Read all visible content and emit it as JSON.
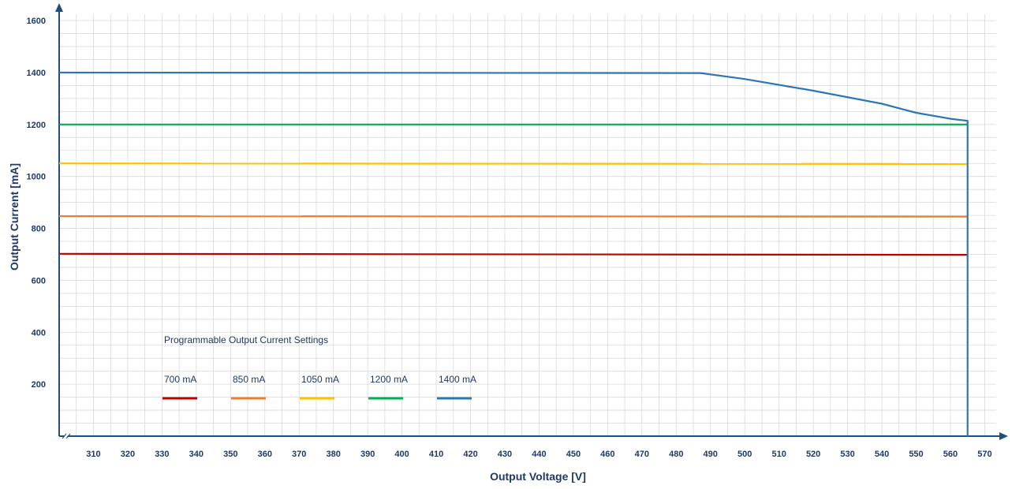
{
  "colors": {
    "axis": "#1F4E79",
    "grid": "#D9D9D9",
    "tick_text": "#1F3864",
    "legend_text": "#1F3864"
  },
  "chart_data": {
    "type": "line",
    "xlabel": "Output Voltage [V]",
    "ylabel": "Output Current [mA]",
    "xlim": [
      300,
      570
    ],
    "ylim": [
      0,
      1600
    ],
    "x_ticks": [
      310,
      320,
      330,
      340,
      350,
      360,
      370,
      380,
      390,
      400,
      410,
      420,
      430,
      440,
      450,
      460,
      470,
      480,
      490,
      500,
      510,
      520,
      530,
      540,
      550,
      560,
      570
    ],
    "y_ticks": [
      200,
      400,
      600,
      800,
      1000,
      1200,
      1400,
      1600
    ],
    "grid": true,
    "legend": {
      "title": "Programmable Output Current Settings",
      "placement": "bottom-left",
      "entries": [
        "700 mA",
        "850 mA",
        "1050 mA",
        "1200 mA",
        "1400 mA"
      ]
    },
    "series": [
      {
        "name": "700 mA",
        "color": "#C00000",
        "points": [
          [
            300,
            702
          ],
          [
            565,
            698
          ]
        ]
      },
      {
        "name": "850 mA",
        "color": "#ED7D31",
        "points": [
          [
            300,
            847
          ],
          [
            565,
            845
          ]
        ]
      },
      {
        "name": "1050 mA",
        "color": "#FFC000",
        "points": [
          [
            300,
            1050
          ],
          [
            565,
            1048
          ]
        ]
      },
      {
        "name": "1200 mA",
        "color": "#00B050",
        "points": [
          [
            300,
            1200
          ],
          [
            565,
            1200
          ]
        ]
      },
      {
        "name": "1400 mA",
        "color": "#2E75B6",
        "points": [
          [
            300,
            1400
          ],
          [
            487,
            1398
          ],
          [
            500,
            1375
          ],
          [
            520,
            1330
          ],
          [
            540,
            1280
          ],
          [
            550,
            1245
          ],
          [
            560,
            1222
          ],
          [
            565,
            1214
          ],
          [
            565,
            0
          ]
        ]
      }
    ]
  }
}
